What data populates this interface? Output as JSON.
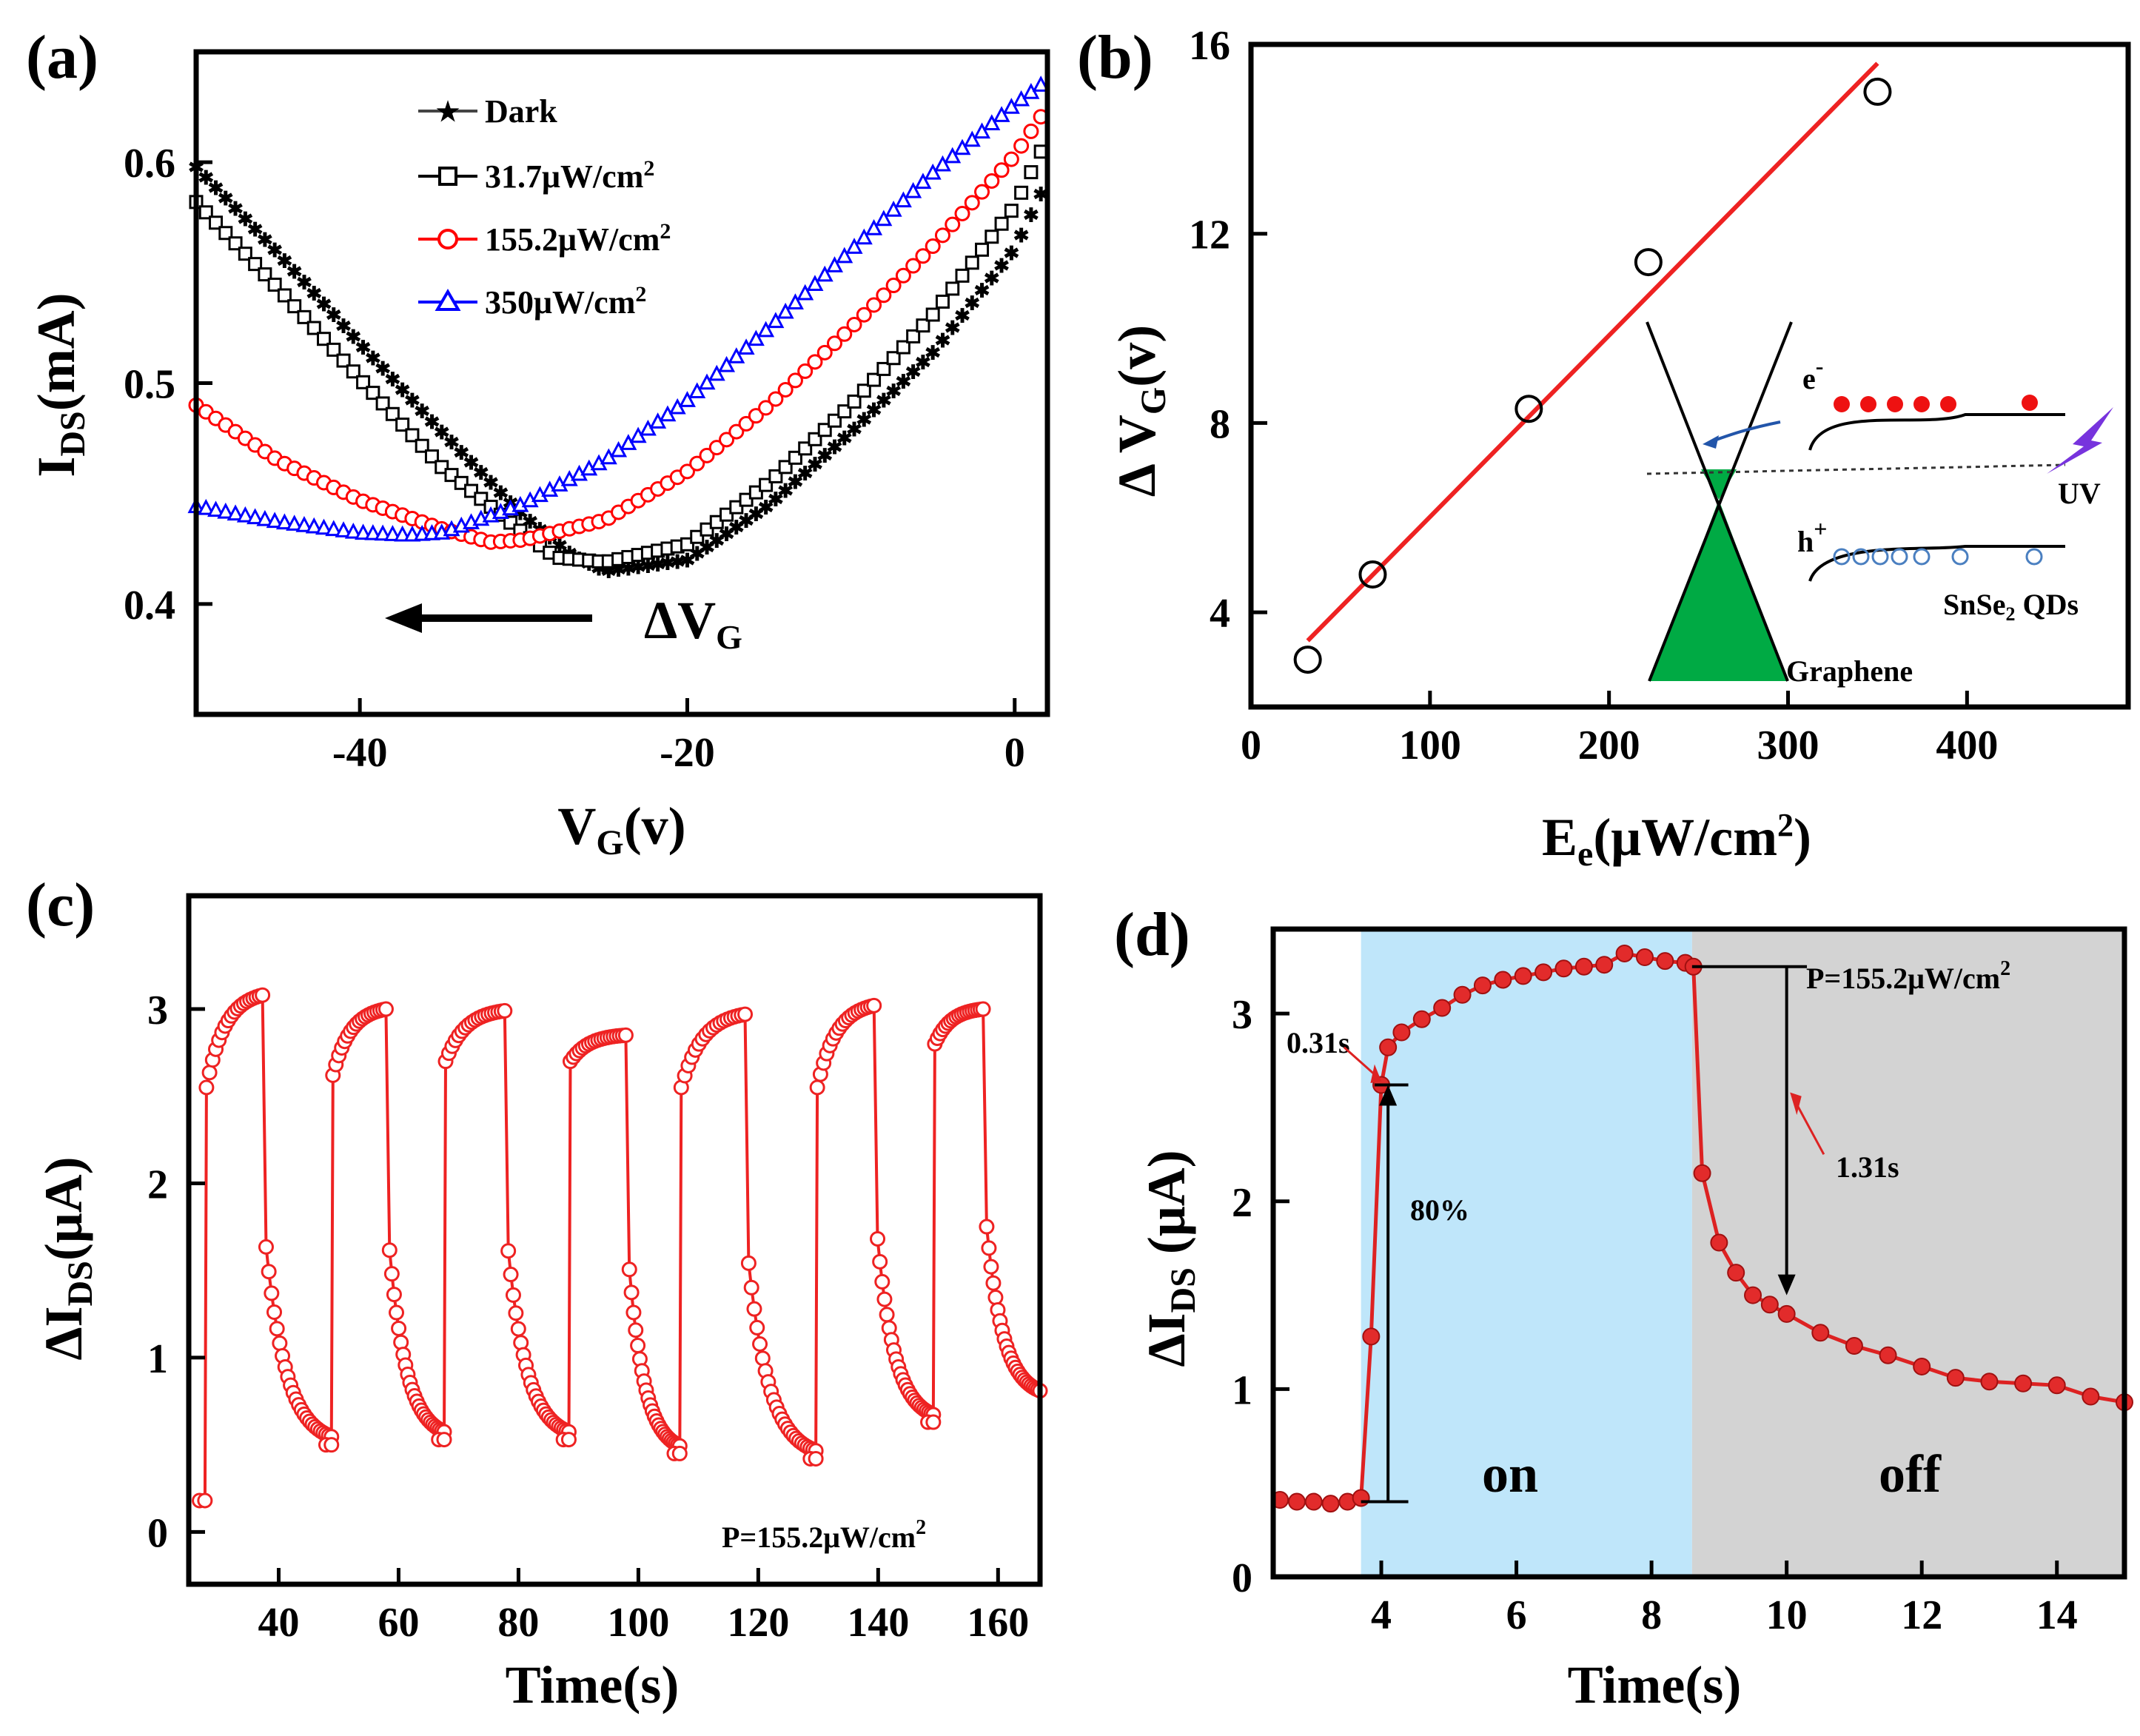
{
  "chart_data": [
    {
      "panel": "(a)",
      "type": "scatter",
      "xlabel": "V_G(v)",
      "ylabel": "I_DS(mA)",
      "xlim": [
        -50,
        2
      ],
      "ylim": [
        0.35,
        0.65
      ],
      "xticks": [
        -40,
        -20,
        0
      ],
      "yticks": [
        0.4,
        0.5,
        0.6
      ],
      "xtick_labels": [
        "-40",
        "-20",
        "0"
      ],
      "ytick_labels": [
        "0.4",
        "0.5",
        "0.6"
      ],
      "legend": [
        "Dark",
        "31.7μW/cm2",
        "155.2μW/cm2",
        "350μW/cm2"
      ],
      "annotation": "ΔV_G",
      "series": [
        {
          "name": "Dark",
          "color": "#444444",
          "marker": "star",
          "x": [
            -50,
            -45,
            -40,
            -35,
            -30,
            -27,
            -25,
            -20,
            -15,
            -10,
            -5,
            0,
            2
          ],
          "y": [
            0.598,
            0.559,
            0.518,
            0.478,
            0.44,
            0.422,
            0.415,
            0.42,
            0.445,
            0.478,
            0.514,
            0.561,
            0.592
          ]
        },
        {
          "name": "31.7μW/cm2",
          "color": "#000000",
          "marker": "square",
          "x": [
            -50,
            -45,
            -40,
            -35,
            -30,
            -28,
            -25,
            -20,
            -15,
            -10,
            -5,
            0,
            2
          ],
          "y": [
            0.582,
            0.543,
            0.502,
            0.462,
            0.432,
            0.421,
            0.419,
            0.427,
            0.455,
            0.49,
            0.531,
            0.58,
            0.611
          ]
        },
        {
          "name": "155.2μW/cm2",
          "color": "#ff0000",
          "marker": "circle",
          "x": [
            -50,
            -45,
            -40,
            -35,
            -32,
            -30,
            -25,
            -20,
            -15,
            -10,
            -5,
            0,
            2
          ],
          "y": [
            0.49,
            0.465,
            0.447,
            0.434,
            0.428,
            0.429,
            0.438,
            0.46,
            0.49,
            0.525,
            0.562,
            0.603,
            0.625
          ]
        },
        {
          "name": "350μW/cm2",
          "color": "#0000ff",
          "marker": "triangle",
          "x": [
            -50,
            -45,
            -40,
            -37,
            -35,
            -30,
            -25,
            -20,
            -15,
            -10,
            -5,
            0,
            2
          ],
          "y": [
            0.444,
            0.437,
            0.432,
            0.431,
            0.432,
            0.445,
            0.465,
            0.492,
            0.525,
            0.56,
            0.595,
            0.626,
            0.637
          ]
        }
      ]
    },
    {
      "panel": "(b)",
      "type": "scatter",
      "xlabel": "E_e(μW/cm^2)",
      "ylabel": "ΔV_G(v)",
      "xlim": [
        0,
        490
      ],
      "ylim": [
        2,
        16
      ],
      "xticks": [
        0,
        100,
        200,
        300,
        400
      ],
      "yticks": [
        4,
        8,
        12,
        16
      ],
      "xtick_labels": [
        "0",
        "100",
        "200",
        "300",
        "400"
      ],
      "ytick_labels": [
        "4",
        "8",
        "12",
        "16"
      ],
      "points": {
        "x": [
          31.7,
          68,
          155.2,
          222,
          350
        ],
        "y": [
          3.0,
          4.8,
          8.3,
          11.4,
          15.0
        ]
      },
      "fit": {
        "x": [
          31.7,
          350
        ],
        "y": [
          3.4,
          15.6
        ],
        "color": "#ee2222"
      },
      "inset_labels": {
        "electron": "e",
        "hole": "h",
        "uv": "UV",
        "qds": "SnSe",
        "qds_sub": "2",
        "qds_suffix": " QDs",
        "graphene": "Graphene"
      }
    },
    {
      "panel": "(c)",
      "type": "line",
      "xlabel": "Time(s)",
      "ylabel": "ΔI_DS(μA)",
      "xlim": [
        25,
        167
      ],
      "ylim": [
        -0.3,
        3.65
      ],
      "xticks": [
        40,
        60,
        80,
        100,
        120,
        140,
        160
      ],
      "yticks": [
        0,
        1,
        2,
        3
      ],
      "xtick_labels": [
        "40",
        "60",
        "80",
        "100",
        "120",
        "140",
        "160"
      ],
      "ytick_labels": [
        "0",
        "1",
        "2",
        "3"
      ],
      "annotation": "P=155.2μW/cm",
      "annotation_sup": "2",
      "cycles": [
        {
          "t_on": 27.7,
          "t_off": 37.3,
          "t_end": 48.8,
          "start": 0.18,
          "rise": 2.55,
          "peak": 3.08,
          "tail": 0.5
        },
        {
          "t_on": 48.8,
          "t_off": 57.9,
          "t_end": 67.6,
          "start": 0.5,
          "rise": 2.62,
          "peak": 3.0,
          "tail": 0.53
        },
        {
          "t_on": 67.6,
          "t_off": 77.7,
          "t_end": 88.4,
          "start": 0.53,
          "rise": 2.7,
          "peak": 2.99,
          "tail": 0.53
        },
        {
          "t_on": 88.4,
          "t_off": 97.9,
          "t_end": 106.9,
          "start": 0.53,
          "rise": 2.7,
          "peak": 2.85,
          "tail": 0.45
        },
        {
          "t_on": 106.9,
          "t_off": 117.8,
          "t_end": 129.6,
          "start": 0.45,
          "rise": 2.55,
          "peak": 2.97,
          "tail": 0.42
        },
        {
          "t_on": 129.6,
          "t_off": 139.3,
          "t_end": 149.2,
          "start": 0.42,
          "rise": 2.55,
          "peak": 3.02,
          "tail": 0.63
        },
        {
          "t_on": 149.2,
          "t_off": 157.5,
          "t_end": 167,
          "start": 0.63,
          "rise": 2.8,
          "peak": 3.0,
          "tail": 0.77
        }
      ]
    },
    {
      "panel": "(d)",
      "type": "line",
      "xlabel": "Time(s)",
      "ylabel": "ΔI_DS (μA)",
      "xlim": [
        2.4,
        15
      ],
      "ylim": [
        0,
        3.45
      ],
      "xticks": [
        4,
        6,
        8,
        10,
        12,
        14
      ],
      "yticks": [
        0,
        1,
        2,
        3
      ],
      "xtick_labels": [
        "4",
        "6",
        "8",
        "10",
        "12",
        "14"
      ],
      "ytick_labels": [
        "0",
        "1",
        "2",
        "3"
      ],
      "on_region": [
        3.7,
        8.6
      ],
      "off_region": [
        8.6,
        15
      ],
      "region_labels": [
        "on",
        "off"
      ],
      "annotations": {
        "power": "P=155.2μW/cm",
        "power_sup": "2",
        "rise_time": "0.31s",
        "fall_time": "1.31s",
        "percent": "80%"
      },
      "x": [
        2.5,
        2.75,
        3.0,
        3.25,
        3.5,
        3.7,
        3.85,
        4.0,
        4.1,
        4.3,
        4.6,
        4.9,
        5.2,
        5.5,
        5.8,
        6.1,
        6.4,
        6.7,
        7.0,
        7.3,
        7.6,
        7.9,
        8.2,
        8.5,
        8.62,
        8.75,
        9.0,
        9.25,
        9.5,
        9.75,
        10.0,
        10.5,
        11.0,
        11.5,
        12.0,
        12.5,
        13.0,
        13.5,
        14.0,
        14.5,
        15.0
      ],
      "y": [
        0.41,
        0.4,
        0.4,
        0.39,
        0.4,
        0.42,
        1.28,
        2.62,
        2.82,
        2.9,
        2.97,
        3.03,
        3.1,
        3.15,
        3.18,
        3.2,
        3.22,
        3.24,
        3.25,
        3.26,
        3.32,
        3.3,
        3.28,
        3.27,
        3.25,
        2.15,
        1.78,
        1.62,
        1.5,
        1.45,
        1.4,
        1.3,
        1.23,
        1.18,
        1.12,
        1.06,
        1.04,
        1.03,
        1.02,
        0.96,
        0.93
      ]
    }
  ]
}
